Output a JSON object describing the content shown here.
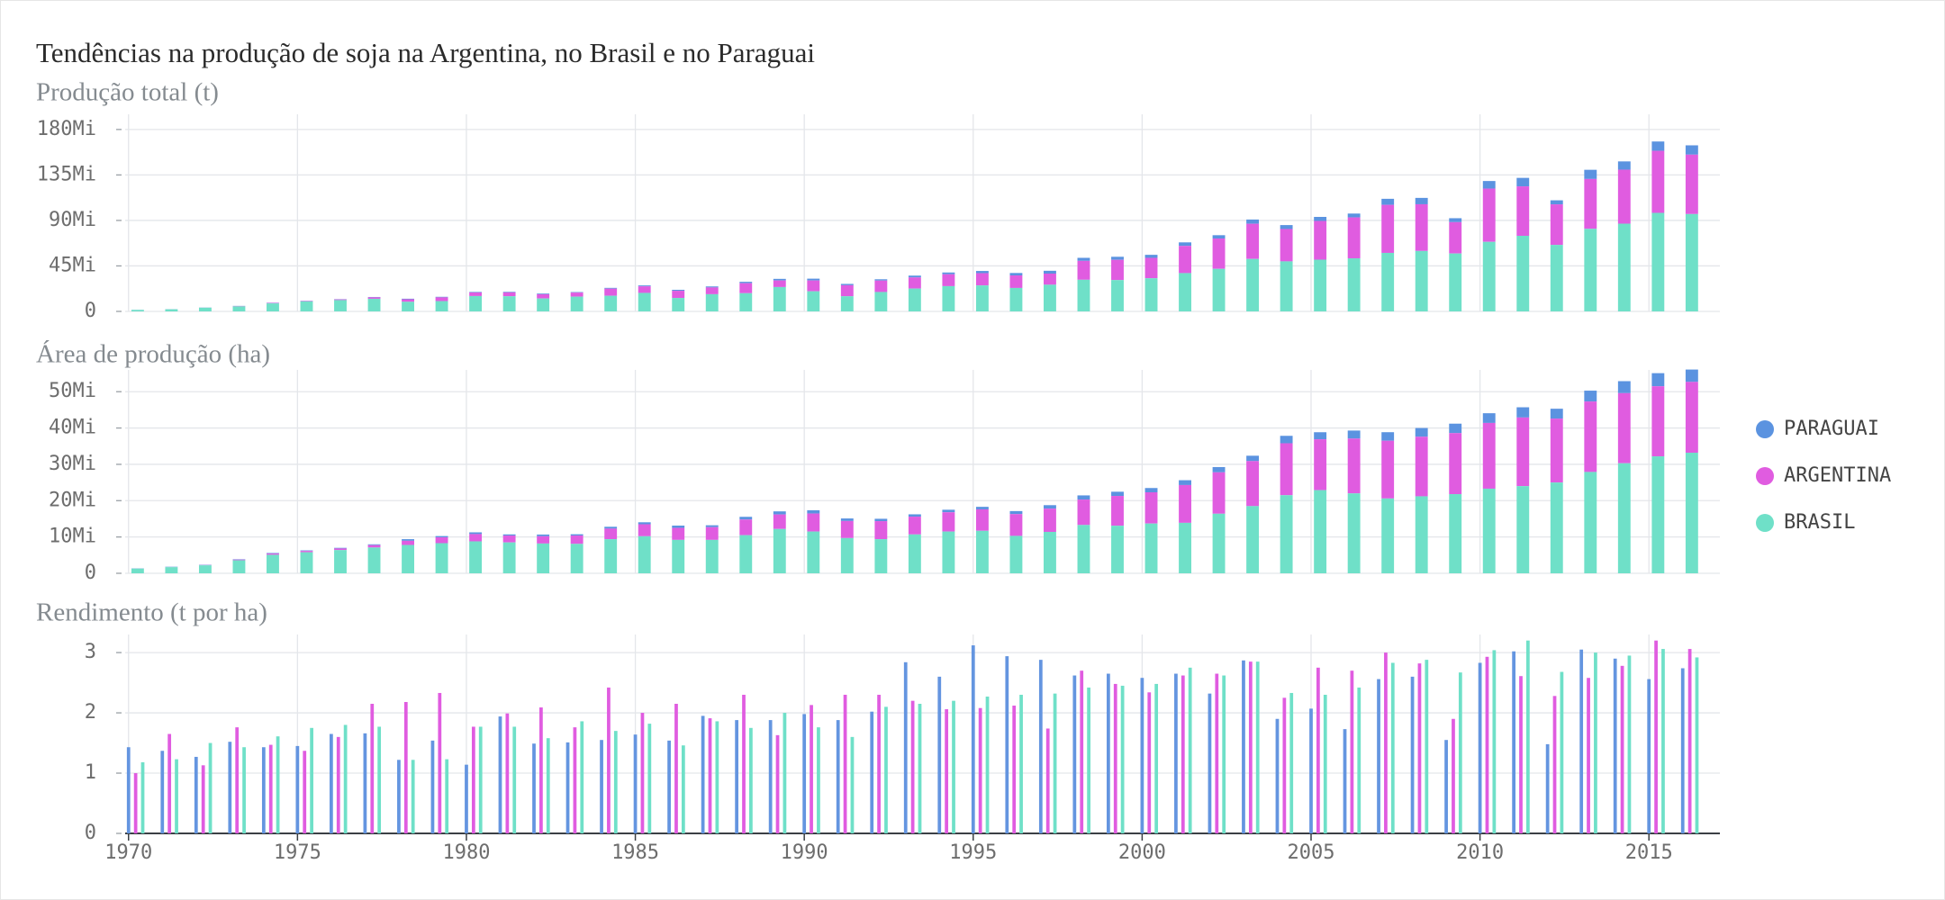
{
  "title": "Tendências na produção de soja na Argentina, no Brasil e no Paraguai",
  "chart_data": [
    {
      "type": "bar",
      "stacked": true,
      "title": "Produção total (t)",
      "legend": "right",
      "grid": true,
      "x": [
        1970,
        1971,
        1972,
        1973,
        1974,
        1975,
        1976,
        1977,
        1978,
        1979,
        1980,
        1981,
        1982,
        1983,
        1984,
        1985,
        1986,
        1987,
        1988,
        1989,
        1990,
        1991,
        1992,
        1993,
        1994,
        1995,
        1996,
        1997,
        1998,
        1999,
        2000,
        2001,
        2002,
        2003,
        2004,
        2005,
        2006,
        2007,
        2008,
        2009,
        2010,
        2011,
        2012,
        2013,
        2014,
        2015,
        2016
      ],
      "xlim": [
        1969.9,
        2017.1
      ],
      "ylim": [
        0,
        195000000.0
      ],
      "yticks": [
        0,
        {
          "value": 45000000.0,
          "label": "45Mi"
        },
        {
          "value": 90000000.0,
          "label": "90Mi"
        },
        {
          "value": 135000000.0,
          "label": "135Mi"
        },
        {
          "value": 180000000.0,
          "label": "180Mi"
        }
      ],
      "series": [
        {
          "name": "PARAGUAI",
          "color": "#5b93e0",
          "values": [
            75000.0,
            98000.0,
            120000.0,
            190000.0,
            220000.0,
            220000.0,
            280000.0,
            370000.0,
            550000.0,
            540000.0,
            540000.0,
            600000.0,
            700000.0,
            530000.0,
            790000.0,
            900000.0,
            970000.0,
            1000000.0,
            1400000.0,
            1600000.0,
            1800000.0,
            1300000.0,
            1300000.0,
            1800000.0,
            1800000.0,
            2200000.0,
            2400000.0,
            2800000.0,
            3000000.0,
            3050000.0,
            2980000.0,
            3500000.0,
            3300000.0,
            4200000.0,
            3900000.0,
            3990000.0,
            3800000.0,
            6000000.0,
            6300000.0,
            3900000.0,
            7500000.0,
            8400000.0,
            4000000.0,
            9100000.0,
            8200000.0,
            9200000.0,
            9200000.0
          ]
        },
        {
          "name": "ARGENTINA",
          "color": "#e05ce0",
          "values": [
            27000.0,
            59000.0,
            78000.0,
            270000.0,
            500000.0,
            485000.0,
            695000.0,
            1400000.0,
            2500000.0,
            3700000.0,
            3500000.0,
            3800000.0,
            4150000.0,
            4000000.0,
            7000000.0,
            6500000.0,
            7100000.0,
            6700000.0,
            9900000.0,
            6500000.0,
            10700000.0,
            10900000.0,
            11300000.0,
            11000000.0,
            11700000.0,
            12100000.0,
            12400000.0,
            11000000.0,
            18700000.0,
            20000000.0,
            20200000.0,
            26900000.0,
            30000000.0,
            34800000.0,
            32000000.0,
            38300000.0,
            40500000.0,
            47500000.0,
            46200000.0,
            31000000.0,
            52700000.0,
            48900000.0,
            40100000.0,
            49300000.0,
            53400000.0,
            61400000.0,
            58800000.0
          ]
        },
        {
          "name": "BRASIL",
          "color": "#6fe0c8",
          "values": [
            1500000.0,
            2100000.0,
            3700000.0,
            5000000.0,
            7900000.0,
            9900000.0,
            11200000.0,
            12500000.0,
            9500000.0,
            10200000.0,
            15200000.0,
            15000000.0,
            12800000.0,
            14600000.0,
            15500000.0,
            18300000.0,
            13300000.0,
            17000000.0,
            18000000.0,
            24100000.0,
            19900000.0,
            15000000.0,
            19200000.0,
            22600000.0,
            25000000.0,
            25700000.0,
            23200000.0,
            26400000.0,
            31300000.0,
            31000000.0,
            32800000.0,
            37900000.0,
            42100000.0,
            51900000.0,
            49500000.0,
            51200000.0,
            52500000.0,
            57900000.0,
            59800000.0,
            57300000.0,
            68800000.0,
            74800000.0,
            65800000.0,
            81700000.0,
            86800000.0,
            97500000.0,
            96300000.0
          ]
        }
      ]
    },
    {
      "type": "bar",
      "stacked": true,
      "title": "Área de produção (ha)",
      "grid": true,
      "x": [
        1970,
        1971,
        1972,
        1973,
        1974,
        1975,
        1976,
        1977,
        1978,
        1979,
        1980,
        1981,
        1982,
        1983,
        1984,
        1985,
        1986,
        1987,
        1988,
        1989,
        1990,
        1991,
        1992,
        1993,
        1994,
        1995,
        1996,
        1997,
        1998,
        1999,
        2000,
        2001,
        2002,
        2003,
        2004,
        2005,
        2006,
        2007,
        2008,
        2009,
        2010,
        2011,
        2012,
        2013,
        2014,
        2015,
        2016
      ],
      "xlim": [
        1969.9,
        2017.1
      ],
      "ylim": [
        0,
        56000000.0
      ],
      "yticks": [
        0,
        {
          "value": 10000000.0,
          "label": "10Mi"
        },
        {
          "value": 20000000.0,
          "label": "20Mi"
        },
        {
          "value": 30000000.0,
          "label": "30Mi"
        },
        {
          "value": 40000000.0,
          "label": "40Mi"
        },
        {
          "value": 50000000.0,
          "label": "50Mi"
        }
      ],
      "series": [
        {
          "name": "PARAGUAI",
          "color": "#5b93e0",
          "values": [
            54000.0,
            71000.0,
            95000.0,
            120000.0,
            150000.0,
            150000.0,
            170000.0,
            220000.0,
            450000.0,
            350000.0,
            480000.0,
            310000.0,
            470000.0,
            350000.0,
            510000.0,
            550000.0,
            630000.0,
            520000.0,
            750000.0,
            850000.0,
            900000.0,
            700000.0,
            650000.0,
            640000.0,
            700000.0,
            700000.0,
            830000.0,
            960000.0,
            1150000.0,
            1160000.0,
            1180000.0,
            1330000.0,
            1450000.0,
            1470000.0,
            2050000.0,
            1940000.0,
            2200000.0,
            2350000.0,
            2400000.0,
            2600000.0,
            2670000.0,
            2810000.0,
            2710000.0,
            2990000.0,
            3300000.0,
            3600000.0,
            3400000.0
          ]
        },
        {
          "name": "ARGENTINA",
          "color": "#e05ce0",
          "values": [
            26000.0,
            37000.0,
            68000.0,
            170000.0,
            340000.0,
            360000.0,
            440000.0,
            660000.0,
            1150000.0,
            1600000.0,
            2000000.0,
            1900000.0,
            2000000.0,
            2300000.0,
            2900000.0,
            3300000.0,
            3300000.0,
            3500000.0,
            4300000.0,
            4000000.0,
            4960000.0,
            4700000.0,
            4960000.0,
            4900000.0,
            5300000.0,
            5900000.0,
            6000000.0,
            6400000.0,
            7000000.0,
            8200000.0,
            8600000.0,
            10400000.0,
            11400000.0,
            12400000.0,
            14300000.0,
            14000000.0,
            15100000.0,
            15900000.0,
            16400000.0,
            16800000.0,
            18100000.0,
            18900000.0,
            17600000.0,
            19400000.0,
            19300000.0,
            19300000.0,
            19500000.0
          ]
        },
        {
          "name": "BRASIL",
          "color": "#6fe0c8",
          "values": [
            1300000.0,
            1700000.0,
            2200000.0,
            3600000.0,
            5100000.0,
            5800000.0,
            6400000.0,
            7100000.0,
            7800000.0,
            8300000.0,
            8800000.0,
            8500000.0,
            8200000.0,
            8100000.0,
            9400000.0,
            10200000.0,
            9200000.0,
            9200000.0,
            10500000.0,
            12200000.0,
            11500000.0,
            9700000.0,
            9400000.0,
            10700000.0,
            11500000.0,
            11700000.0,
            10300000.0,
            11400000.0,
            13300000.0,
            13100000.0,
            13700000.0,
            13900000.0,
            16400000.0,
            18500000.0,
            21500000.0,
            22900000.0,
            22000000.0,
            20600000.0,
            21200000.0,
            21800000.0,
            23300000.0,
            24000000.0,
            25000000.0,
            27900000.0,
            30300000.0,
            32200000.0,
            33200000.0
          ]
        }
      ]
    },
    {
      "type": "bar",
      "stacked": false,
      "title": "Rendimento (t por ha)",
      "grid": true,
      "x": [
        1970,
        1971,
        1972,
        1973,
        1974,
        1975,
        1976,
        1977,
        1978,
        1979,
        1980,
        1981,
        1982,
        1983,
        1984,
        1985,
        1986,
        1987,
        1988,
        1989,
        1990,
        1991,
        1992,
        1993,
        1994,
        1995,
        1996,
        1997,
        1998,
        1999,
        2000,
        2001,
        2002,
        2003,
        2004,
        2005,
        2006,
        2007,
        2008,
        2009,
        2010,
        2011,
        2012,
        2013,
        2014,
        2015,
        2016
      ],
      "xlim": [
        1969.9,
        2017.1
      ],
      "xticks": [
        1970,
        1975,
        1980,
        1985,
        1990,
        1995,
        2000,
        2005,
        2010,
        2015
      ],
      "ylim": [
        0,
        3.3
      ],
      "yticks": [
        0,
        1,
        2,
        3
      ],
      "series": [
        {
          "name": "PARAGUAI",
          "color": "#6495e0",
          "values": [
            1.43,
            1.37,
            1.27,
            1.52,
            1.43,
            1.45,
            1.65,
            1.66,
            1.22,
            1.54,
            1.14,
            1.94,
            1.49,
            1.51,
            1.55,
            1.64,
            1.54,
            1.95,
            1.88,
            1.88,
            1.98,
            1.88,
            2.02,
            2.84,
            2.6,
            3.12,
            2.94,
            2.88,
            2.62,
            2.65,
            2.58,
            2.65,
            2.32,
            2.87,
            1.9,
            2.07,
            1.73,
            2.56,
            2.6,
            1.55,
            2.83,
            3.02,
            1.48,
            3.05,
            2.9,
            2.56,
            2.74
          ]
        },
        {
          "name": "ARGENTINA",
          "color": "#e05ce0",
          "values": [
            1.0,
            1.65,
            1.13,
            1.76,
            1.47,
            1.37,
            1.6,
            2.15,
            2.18,
            2.33,
            1.77,
            1.99,
            2.09,
            1.76,
            2.42,
            2.0,
            2.15,
            1.91,
            2.3,
            1.63,
            2.13,
            2.3,
            2.3,
            2.2,
            2.06,
            2.08,
            2.12,
            1.74,
            2.7,
            2.48,
            2.34,
            2.62,
            2.65,
            2.85,
            2.25,
            2.75,
            2.7,
            3.0,
            2.82,
            1.9,
            2.93,
            2.61,
            2.28,
            2.58,
            2.78,
            3.2,
            3.06
          ]
        },
        {
          "name": "BRASIL",
          "color": "#6fe0c8",
          "values": [
            1.18,
            1.23,
            1.5,
            1.43,
            1.61,
            1.75,
            1.8,
            1.77,
            1.22,
            1.23,
            1.77,
            1.77,
            1.58,
            1.86,
            1.7,
            1.82,
            1.46,
            1.86,
            1.75,
            2.0,
            1.76,
            1.6,
            2.1,
            2.15,
            2.2,
            2.27,
            2.3,
            2.32,
            2.42,
            2.45,
            2.48,
            2.75,
            2.62,
            2.85,
            2.33,
            2.3,
            2.42,
            2.83,
            2.88,
            2.67,
            3.04,
            3.2,
            2.68,
            3.0,
            2.95,
            3.06,
            2.92
          ]
        }
      ]
    }
  ]
}
